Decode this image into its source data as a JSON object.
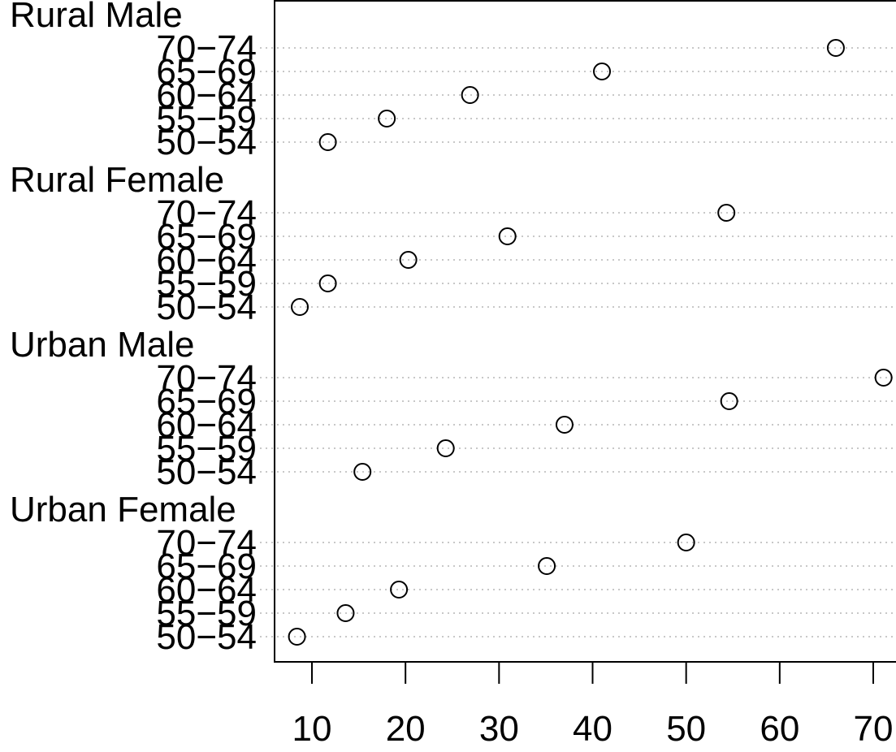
{
  "chart_data": {
    "type": "scatter",
    "title": "",
    "xlabel": "",
    "ylabel": "",
    "xlim": [
      8,
      71
    ],
    "xticks": [
      10,
      20,
      30,
      40,
      50,
      60,
      70
    ],
    "grid": "dotted horizontal row guides",
    "legend": "none",
    "categories": [
      "50-54",
      "55-59",
      "60-64",
      "65-69",
      "70-74"
    ],
    "groups": [
      {
        "name": "Rural Male",
        "rows": [
          {
            "label": "70−74",
            "value": 66.0
          },
          {
            "label": "65−69",
            "value": 41.0
          },
          {
            "label": "60−64",
            "value": 26.9
          },
          {
            "label": "55−59",
            "value": 18.0
          },
          {
            "label": "50−54",
            "value": 11.7
          }
        ]
      },
      {
        "name": "Rural Female",
        "rows": [
          {
            "label": "70−74",
            "value": 54.3
          },
          {
            "label": "65−69",
            "value": 30.9
          },
          {
            "label": "60−64",
            "value": 20.3
          },
          {
            "label": "55−59",
            "value": 11.7
          },
          {
            "label": "50−54",
            "value": 8.7
          }
        ]
      },
      {
        "name": "Urban Male",
        "rows": [
          {
            "label": "70−74",
            "value": 71.1
          },
          {
            "label": "65−69",
            "value": 54.6
          },
          {
            "label": "60−64",
            "value": 37.0
          },
          {
            "label": "55−59",
            "value": 24.3
          },
          {
            "label": "50−54",
            "value": 15.4
          }
        ]
      },
      {
        "name": "Urban Female",
        "rows": [
          {
            "label": "70−74",
            "value": 50.0
          },
          {
            "label": "65−69",
            "value": 35.1
          },
          {
            "label": "60−64",
            "value": 19.3
          },
          {
            "label": "55−59",
            "value": 13.6
          },
          {
            "label": "50−54",
            "value": 8.4
          }
        ]
      }
    ]
  }
}
